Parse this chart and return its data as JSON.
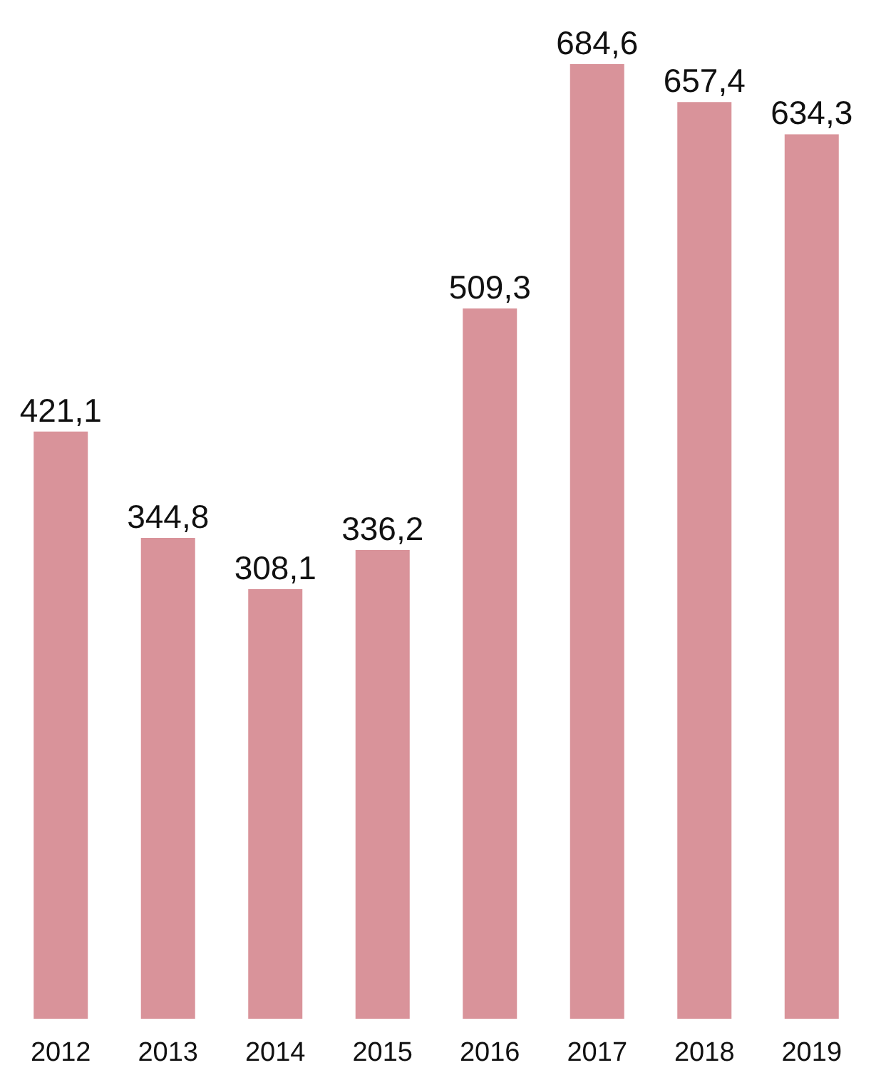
{
  "chart_data": {
    "type": "bar",
    "categories": [
      "2012",
      "2013",
      "2014",
      "2015",
      "2016",
      "2017",
      "2018",
      "2019"
    ],
    "values": [
      421.1,
      344.8,
      308.1,
      336.2,
      509.3,
      684.6,
      657.4,
      634.3
    ],
    "value_labels": [
      "421,1",
      "344,8",
      "308,1",
      "336,2",
      "509,3",
      "684,6",
      "657,4",
      "634,3"
    ],
    "color": "#d9939a",
    "grid": false
  }
}
